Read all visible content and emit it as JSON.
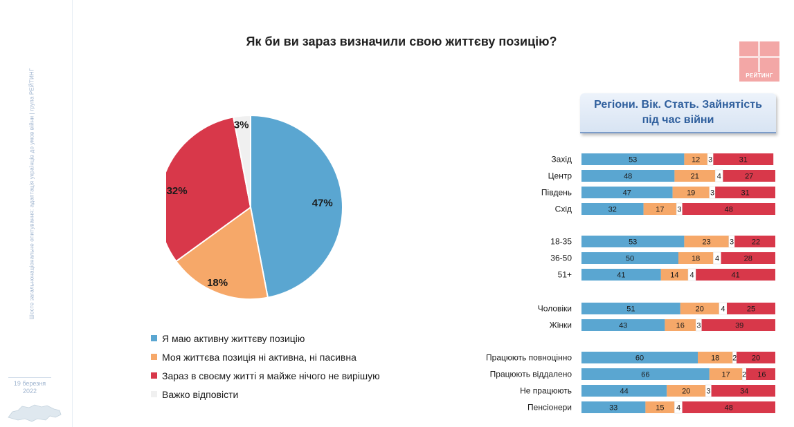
{
  "header": {
    "side_caption": "Шосте загальнонаціональне опитування: адаптація українців до умов війни | група РЕЙТИНГ",
    "date": "19 березня\n2022",
    "logo_text": "РЕЙТИНГ"
  },
  "colors": {
    "active": "#5aa6d1",
    "neutral": "#f6a869",
    "passive": "#d8384a",
    "unsure": "#f0f0f0"
  },
  "chart_data": [
    {
      "type": "pie",
      "title": "Як би ви зараз визначили свою життєву позицію?",
      "slices": [
        {
          "name": "Я маю активну життєву позицію",
          "value": 47,
          "label": "47%",
          "color": "#5aa6d1"
        },
        {
          "name": "Моя життєва позиція ні активна, ні пасивна",
          "value": 18,
          "label": "18%",
          "color": "#f6a869"
        },
        {
          "name": "Зараз в своєму житті я майже нічого не вирішую",
          "value": 32,
          "label": "32%",
          "color": "#d8384a"
        },
        {
          "name": "Важко відповісти",
          "value": 3,
          "label": "3%",
          "color": "#f0f0f0"
        }
      ],
      "legend_placement": "bottom"
    },
    {
      "type": "bar",
      "stacked": true,
      "orientation": "horizontal",
      "title": "Регіони. Вік. Стать. Зайнятість\nпід час війни",
      "categories": [
        "Захід",
        "Центр",
        "Південь",
        "Схід",
        "18-35",
        "36-50",
        "51+",
        "Чоловіки",
        "Жінки",
        "Працюють повноцінно",
        "Працюють віддалено",
        "Не працюють",
        "Пенсіонери"
      ],
      "groups": [
        [
          0,
          1,
          2,
          3
        ],
        [
          4,
          5,
          6
        ],
        [
          7,
          8
        ],
        [
          9,
          10,
          11,
          12
        ]
      ],
      "series": [
        {
          "name": "Я маю активну життєву позицію",
          "color": "#5aa6d1",
          "values": [
            53,
            48,
            47,
            32,
            53,
            50,
            41,
            51,
            43,
            60,
            66,
            44,
            33
          ]
        },
        {
          "name": "Моя життєва позиція ні активна, ні пасивна",
          "color": "#f6a869",
          "values": [
            12,
            21,
            19,
            17,
            23,
            18,
            14,
            20,
            16,
            18,
            17,
            20,
            15
          ]
        },
        {
          "name": "Важко відповісти",
          "color": "#ffffff",
          "values": [
            3,
            4,
            3,
            3,
            3,
            4,
            4,
            4,
            3,
            2,
            2,
            3,
            4
          ]
        },
        {
          "name": "Зараз в своєму житті я майже нічого не вирішую",
          "color": "#d8384a",
          "values": [
            31,
            27,
            31,
            48,
            22,
            28,
            41,
            25,
            39,
            20,
            16,
            34,
            48
          ]
        }
      ],
      "xlim": [
        0,
        100
      ]
    }
  ]
}
